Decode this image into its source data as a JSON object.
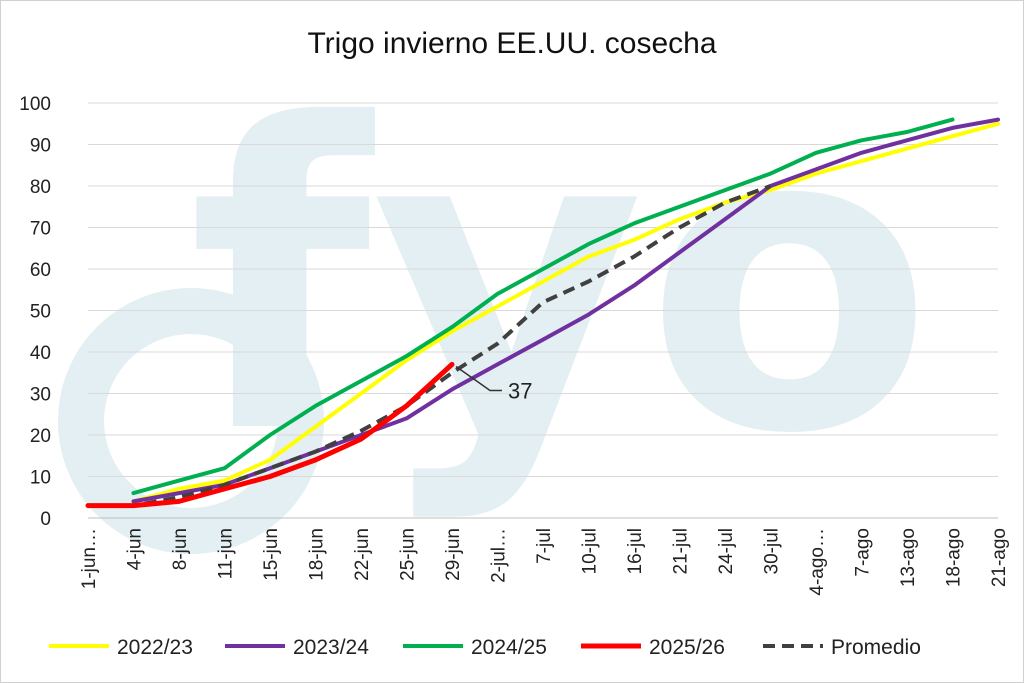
{
  "chart_data": {
    "type": "line",
    "title": "Trigo invierno EE.UU. cosecha",
    "watermark": "fyo",
    "colors": {
      "2022/23": "#ffff00",
      "2023/24": "#7030a0",
      "2024/25": "#00b050",
      "2025/26": "#ff0000",
      "Promedio": "#404040",
      "watermark": "#e3eff2",
      "grid": "#d9d9d9"
    },
    "categories": [
      "1-jun…",
      "4-jun",
      "8-jun",
      "11-jun",
      "15-jun",
      "18-jun",
      "22-jun",
      "25-jun",
      "29-jun",
      "2-jul…",
      "7-jul",
      "10-jul",
      "16-jul",
      "21-jul",
      "24-jul",
      "30-jul",
      "4-ago…",
      "7-ago",
      "13-ago",
      "18-ago",
      "21-ago"
    ],
    "ylim": [
      0,
      100
    ],
    "yticks": [
      0,
      10,
      20,
      30,
      40,
      50,
      60,
      70,
      80,
      90,
      100
    ],
    "grid": true,
    "legend_position": "bottom",
    "series": [
      {
        "name": "2022/23",
        "style": "solid",
        "values": [
          null,
          4,
          7,
          9,
          14,
          22,
          30,
          38,
          45,
          51,
          57,
          63,
          67,
          72,
          76,
          79,
          83,
          86,
          89,
          92,
          95
        ]
      },
      {
        "name": "2023/24",
        "style": "solid",
        "values": [
          null,
          4,
          6,
          8,
          12,
          16,
          20,
          24,
          31,
          37,
          43,
          49,
          56,
          64,
          72,
          80,
          84,
          88,
          91,
          94,
          96
        ]
      },
      {
        "name": "2024/25",
        "style": "solid",
        "values": [
          null,
          6,
          9,
          12,
          20,
          27,
          33,
          39,
          46,
          54,
          60,
          66,
          71,
          75,
          79,
          83,
          88,
          91,
          93,
          96,
          null
        ]
      },
      {
        "name": "2025/26",
        "style": "solid",
        "values": [
          3,
          3,
          4,
          7,
          10,
          14,
          19,
          27,
          37,
          null,
          null,
          null,
          null,
          null,
          null,
          null,
          null,
          null,
          null,
          null,
          null
        ]
      },
      {
        "name": "Promedio",
        "style": "dashed",
        "values": [
          3,
          3,
          5,
          8,
          12,
          16,
          21,
          27,
          35,
          42,
          52,
          57,
          63,
          70,
          76,
          80,
          null,
          null,
          null,
          null,
          null
        ]
      }
    ],
    "annotations": [
      {
        "text": "37",
        "series": "2025/26",
        "category": "29-jun",
        "value": 37
      }
    ]
  }
}
